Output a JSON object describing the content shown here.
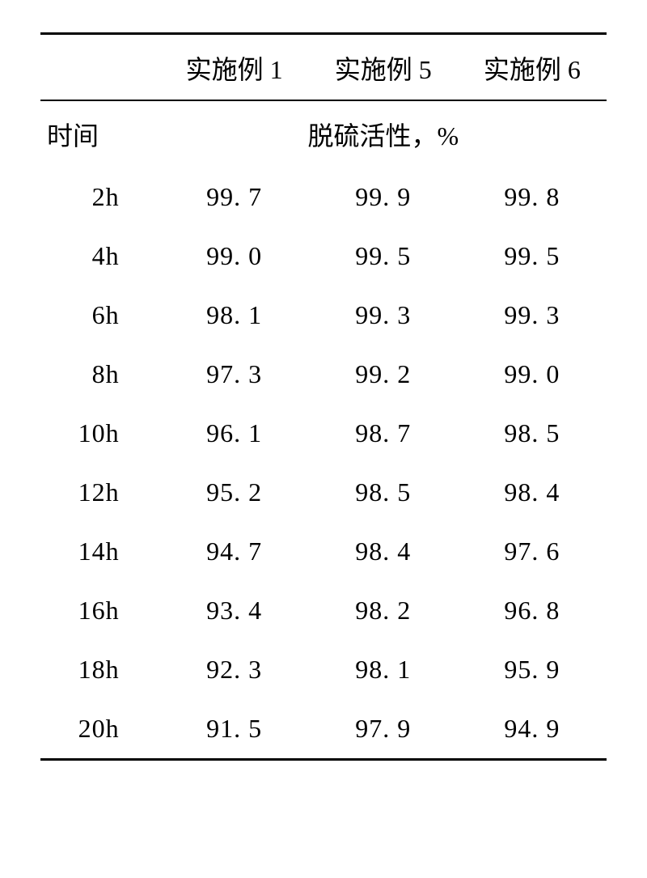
{
  "table": {
    "columns": [
      "",
      "实施例 1",
      "实施例 5",
      "实施例 6"
    ],
    "subheader": {
      "left": "时间",
      "right": "脱硫活性，%"
    },
    "rows": [
      {
        "time": "2h",
        "v1": "99. 7",
        "v2": "99. 9",
        "v3": "99. 8"
      },
      {
        "time": "4h",
        "v1": "99. 0",
        "v2": "99. 5",
        "v3": "99. 5"
      },
      {
        "time": "6h",
        "v1": "98. 1",
        "v2": "99. 3",
        "v3": "99. 3"
      },
      {
        "time": "8h",
        "v1": "97. 3",
        "v2": "99. 2",
        "v3": "99. 0"
      },
      {
        "time": "10h",
        "v1": "96. 1",
        "v2": "98. 7",
        "v3": "98. 5"
      },
      {
        "time": "12h",
        "v1": "95. 2",
        "v2": "98. 5",
        "v3": "98. 4"
      },
      {
        "time": "14h",
        "v1": "94. 7",
        "v2": "98. 4",
        "v3": "97. 6"
      },
      {
        "time": "16h",
        "v1": "93. 4",
        "v2": "98. 2",
        "v3": "96. 8"
      },
      {
        "time": "18h",
        "v1": "92. 3",
        "v2": "98. 1",
        "v3": "95. 9"
      },
      {
        "time": "20h",
        "v1": "91. 5",
        "v2": "97. 9",
        "v3": "94. 9"
      }
    ],
    "border_color": "#000000",
    "font_size": 32
  }
}
